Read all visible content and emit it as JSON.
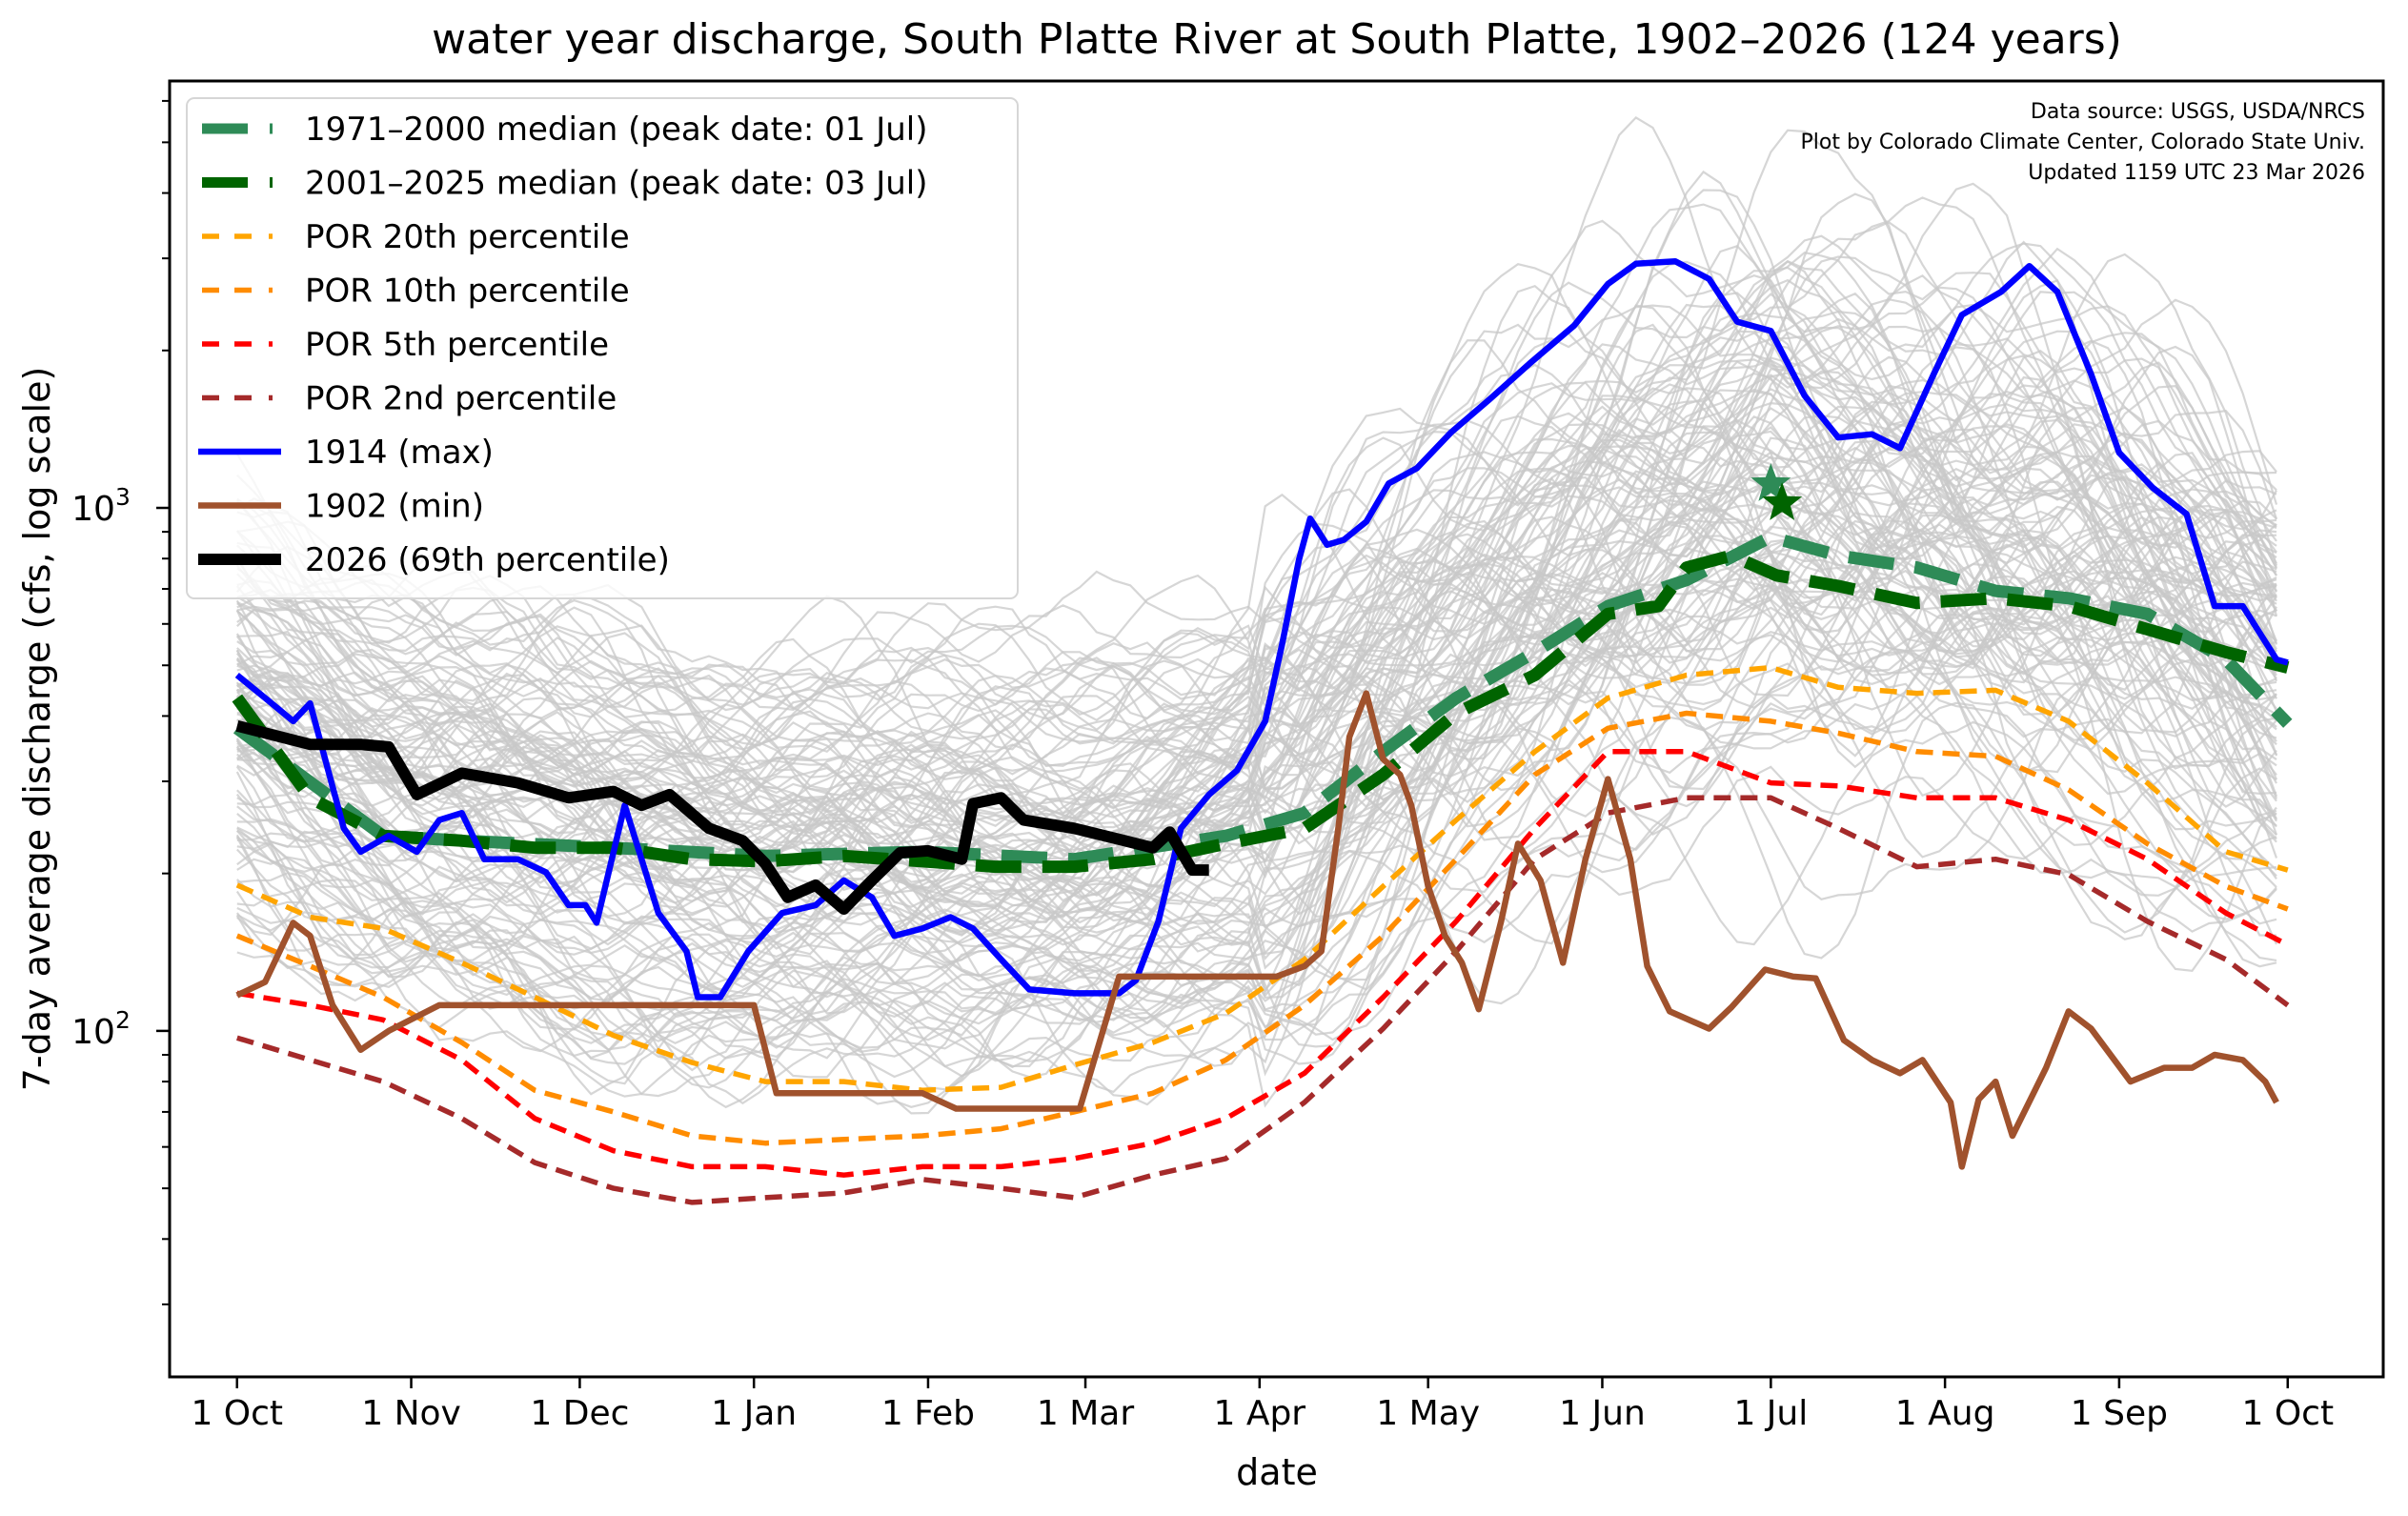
{
  "chart_data": {
    "type": "line",
    "title": "water year discharge, South Platte River at South Platte, 1902–2026 (124 years)",
    "xlabel": "date",
    "ylabel": "7-day average discharge (cfs, log scale)",
    "yscale": "log",
    "ylim": [
      21.8,
      6550
    ],
    "xlim_days_since_oct1": [
      -12,
      382
    ],
    "grid": false,
    "legend_placement": "top-left",
    "x_ticks": [
      {
        "day": 0,
        "label": "1 Oct"
      },
      {
        "day": 31,
        "label": "1 Nov"
      },
      {
        "day": 61,
        "label": "1 Dec"
      },
      {
        "day": 92,
        "label": "1 Jan"
      },
      {
        "day": 123,
        "label": "1 Feb"
      },
      {
        "day": 151,
        "label": "1 Mar"
      },
      {
        "day": 182,
        "label": "1 Apr"
      },
      {
        "day": 212,
        "label": "1 May"
      },
      {
        "day": 243,
        "label": "1 Jun"
      },
      {
        "day": 273,
        "label": "1 Jul"
      },
      {
        "day": 304,
        "label": "1 Aug"
      },
      {
        "day": 335,
        "label": "1 Sep"
      },
      {
        "day": 365,
        "label": "1 Oct"
      }
    ],
    "y_ticks": [
      {
        "value": 100,
        "label_base": "10",
        "label_exp": "2"
      },
      {
        "value": 1000,
        "label_base": "10",
        "label_exp": "3"
      }
    ],
    "annotations": [
      "Data source: USGS, USDA/NRCS",
      "Plot by Colorado Climate Center, Colorado State Univ.",
      "Updated 1159 UTC 23 Mar 2026"
    ],
    "background_years_count": 124,
    "background_color": "#c8c8c8",
    "series": [
      {
        "name": "1971–2000 median (peak date: 01 Jul)",
        "color": "#2e8b57",
        "style": "dashed-thick",
        "x": [
          0,
          26,
          40,
          67,
          94,
          122,
          149,
          176,
          190,
          204,
          217,
          231,
          244,
          258,
          273,
          285,
          299,
          313,
          326,
          340,
          354,
          365
        ],
        "y": [
          379,
          236,
          231,
          224,
          216,
          220,
          213,
          236,
          261,
          342,
          433,
          530,
          649,
          728,
          880,
          811,
          769,
          694,
          672,
          627,
          513,
          387
        ],
        "peak": {
          "day": 273,
          "value": 1110
        }
      },
      {
        "name": "2001–2025 median (peak date: 03 Jul)",
        "color": "#006400",
        "style": "dashed-thick",
        "x": [
          0,
          13,
          26,
          40,
          53,
          67,
          81,
          94,
          108,
          122,
          135,
          149,
          163,
          176,
          190,
          204,
          217,
          231,
          244,
          253,
          258,
          266,
          274,
          285,
          299,
          313,
          326,
          340,
          354,
          365
        ],
        "y": [
          433,
          279,
          236,
          231,
          224,
          224,
          213,
          211,
          216,
          211,
          206,
          206,
          213,
          228,
          244,
          309,
          405,
          479,
          627,
          649,
          769,
          811,
          743,
          709,
          658,
          672,
          649,
          586,
          530,
          495
        ],
        "peak": {
          "day": 275,
          "value": 1021
        }
      },
      {
        "name": "POR 20th percentile",
        "color": "#ffa500",
        "style": "dashed",
        "x": [
          0,
          13,
          26,
          40,
          53,
          67,
          81,
          94,
          108,
          122,
          136,
          149,
          163,
          176,
          190,
          204,
          217,
          231,
          244,
          258,
          273,
          285,
          299,
          313,
          326,
          340,
          354,
          365
        ],
        "y": [
          190,
          165,
          157,
          135,
          116,
          98,
          87,
          80,
          80,
          77,
          78,
          86,
          95,
          108,
          137,
          189,
          253,
          342,
          433,
          479,
          495,
          454,
          442,
          448,
          391,
          298,
          220,
          203
        ]
      },
      {
        "name": "POR 10th percentile",
        "color": "#ff8c00",
        "style": "dashed",
        "x": [
          0,
          13,
          26,
          40,
          53,
          67,
          81,
          94,
          108,
          122,
          136,
          149,
          163,
          176,
          190,
          204,
          217,
          231,
          244,
          258,
          273,
          285,
          299,
          313,
          326,
          340,
          354,
          365
        ],
        "y": [
          152,
          133,
          116,
          95,
          77,
          70,
          63,
          61,
          62,
          63,
          65,
          70,
          76,
          88,
          112,
          152,
          213,
          309,
          379,
          405,
          391,
          371,
          342,
          335,
          289,
          228,
          189,
          171
        ]
      },
      {
        "name": "POR 5th percentile",
        "color": "#ff0000",
        "style": "dashed",
        "x": [
          0,
          13,
          26,
          40,
          53,
          67,
          81,
          94,
          108,
          122,
          136,
          149,
          163,
          176,
          190,
          204,
          217,
          231,
          244,
          258,
          273,
          285,
          299,
          313,
          326,
          340,
          354,
          365
        ],
        "y": [
          118,
          112,
          105,
          88,
          68,
          59,
          55,
          55,
          53,
          55,
          55,
          57,
          61,
          68,
          83,
          116,
          162,
          244,
          342,
          342,
          298,
          294,
          279,
          279,
          253,
          213,
          168,
          146
        ]
      },
      {
        "name": "POR 2nd percentile",
        "color": "#a52a2a",
        "style": "dashed",
        "x": [
          0,
          13,
          26,
          40,
          53,
          67,
          81,
          94,
          108,
          122,
          136,
          149,
          163,
          176,
          190,
          204,
          217,
          231,
          244,
          258,
          273,
          285,
          299,
          313,
          326,
          340,
          354,
          365
        ],
        "y": [
          97,
          88,
          80,
          68,
          56,
          50,
          47,
          48,
          49,
          52,
          50,
          48,
          53,
          57,
          73,
          101,
          142,
          213,
          261,
          279,
          279,
          244,
          206,
          213,
          199,
          162,
          137,
          112
        ]
      },
      {
        "name": "1914 (max)",
        "color": "#0000ff",
        "style": "solid",
        "x": [
          0,
          5,
          10,
          13,
          19,
          22,
          27,
          32,
          36,
          40,
          44,
          50,
          55,
          59,
          62,
          64,
          69,
          75,
          80,
          82,
          86,
          91,
          97,
          103,
          108,
          113,
          117,
          122,
          127,
          131,
          136,
          141,
          149,
          157,
          160,
          164,
          168,
          173,
          178,
          183,
          186,
          189,
          191,
          194,
          197,
          201,
          205,
          210,
          216,
          223,
          230,
          238,
          244,
          249,
          256,
          262,
          267,
          273,
          279,
          285,
          291,
          296,
          302,
          307,
          314,
          319,
          324,
          330,
          335,
          341,
          347,
          352,
          357,
          363,
          365
        ],
        "y": [
          479,
          433,
          391,
          423,
          244,
          220,
          236,
          220,
          253,
          261,
          213,
          213,
          201,
          174,
          174,
          161,
          270,
          168,
          142,
          116,
          116,
          142,
          168,
          174,
          194,
          180,
          152,
          157,
          165,
          157,
          137,
          120,
          118,
          118,
          125,
          162,
          244,
          283,
          315,
          391,
          548,
          795,
          954,
          850,
          869,
          941,
          1114,
          1191,
          1392,
          1615,
          1885,
          2232,
          2680,
          2930,
          2960,
          2740,
          2270,
          2180,
          1640,
          1363,
          1383,
          1301,
          1802,
          2339,
          2590,
          2900,
          2590,
          1802,
          1275,
          1092,
          973,
          649,
          649,
          513,
          506
        ]
      },
      {
        "name": "1902 (min)",
        "color": "#a0522d",
        "style": "solid",
        "x": [
          0,
          5,
          10,
          13,
          17,
          22,
          27,
          36,
          53,
          67,
          81,
          92,
          96,
          108,
          122,
          128,
          142,
          150,
          157,
          171,
          185,
          190,
          193,
          196,
          198,
          201,
          204,
          207,
          209,
          212,
          215,
          218,
          221,
          225,
          228,
          232,
          236,
          240,
          244,
          248,
          251,
          255,
          262,
          266,
          272,
          277,
          281,
          286,
          291,
          296,
          300,
          305,
          307,
          310,
          313,
          316,
          322,
          326,
          330,
          337,
          343,
          348,
          352,
          357,
          361,
          363
        ],
        "y": [
          117,
          124,
          161,
          152,
          112,
          92,
          100,
          112,
          112,
          112,
          112,
          112,
          76,
          76,
          76,
          71,
          71,
          71,
          127,
          127,
          127,
          133,
          142,
          244,
          365,
          442,
          331,
          309,
          270,
          189,
          152,
          135,
          110,
          162,
          228,
          194,
          135,
          213,
          303,
          213,
          133,
          109,
          101,
          111,
          131,
          127,
          126,
          96,
          88,
          83,
          88,
          73,
          55,
          74,
          80,
          63,
          85,
          109,
          101,
          80,
          85,
          85,
          90,
          88,
          80,
          73
        ]
      },
      {
        "name": "2026 (69th percentile)",
        "color": "#000000",
        "style": "solid-thick",
        "x": [
          0,
          13,
          22,
          27,
          32,
          40,
          50,
          59,
          67,
          72,
          77,
          84,
          90,
          94,
          98,
          103,
          108,
          113,
          118,
          123,
          129,
          131,
          136,
          140,
          149,
          158,
          163,
          166,
          170,
          173
        ],
        "y": [
          383,
          353,
          353,
          349,
          283,
          311,
          298,
          279,
          287,
          270,
          283,
          244,
          231,
          209,
          180,
          190,
          171,
          194,
          219,
          221,
          213,
          272,
          279,
          253,
          244,
          231,
          224,
          240,
          203,
          203
        ]
      }
    ]
  }
}
